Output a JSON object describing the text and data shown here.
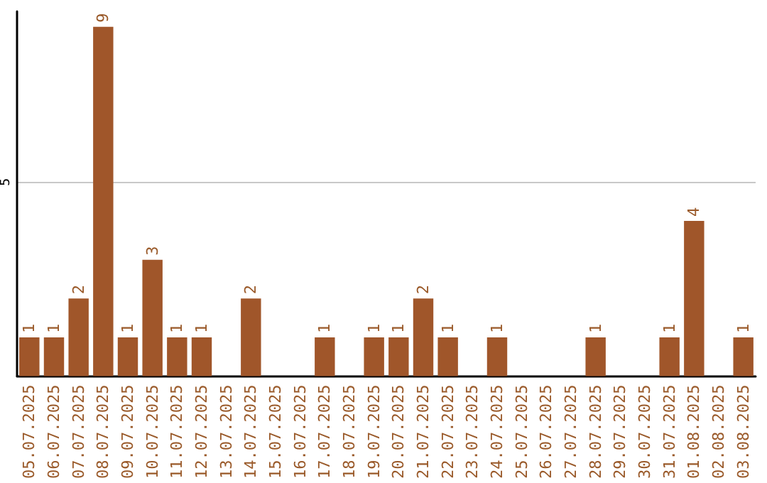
{
  "chart_data": {
    "type": "bar",
    "categories": [
      "05.07.2025",
      "06.07.2025",
      "07.07.2025",
      "08.07.2025",
      "09.07.2025",
      "10.07.2025",
      "11.07.2025",
      "12.07.2025",
      "13.07.2025",
      "14.07.2025",
      "15.07.2025",
      "16.07.2025",
      "17.07.2025",
      "18.07.2025",
      "19.07.2025",
      "20.07.2025",
      "21.07.2025",
      "22.07.2025",
      "23.07.2025",
      "24.07.2025",
      "25.07.2025",
      "26.07.2025",
      "27.07.2025",
      "28.07.2025",
      "29.07.2025",
      "30.07.2025",
      "31.07.2025",
      "01.08.2025",
      "02.08.2025",
      "03.08.2025"
    ],
    "values": [
      1,
      1,
      2,
      9,
      1,
      3,
      1,
      1,
      0,
      2,
      0,
      0,
      1,
      0,
      1,
      1,
      2,
      1,
      0,
      1,
      0,
      0,
      0,
      1,
      0,
      0,
      1,
      4,
      0,
      1
    ],
    "value_labels": [
      "1",
      "1",
      "2",
      "9",
      "1",
      "3",
      "1",
      "1",
      null,
      "2",
      null,
      null,
      "1",
      null,
      "1",
      "1",
      "2",
      "1",
      null,
      "1",
      null,
      null,
      null,
      "1",
      null,
      null,
      "1",
      "4",
      null,
      "1"
    ],
    "color": "#a0562a",
    "ylim": [
      0,
      9.4
    ],
    "yticks": [
      5
    ],
    "grid": "y"
  }
}
